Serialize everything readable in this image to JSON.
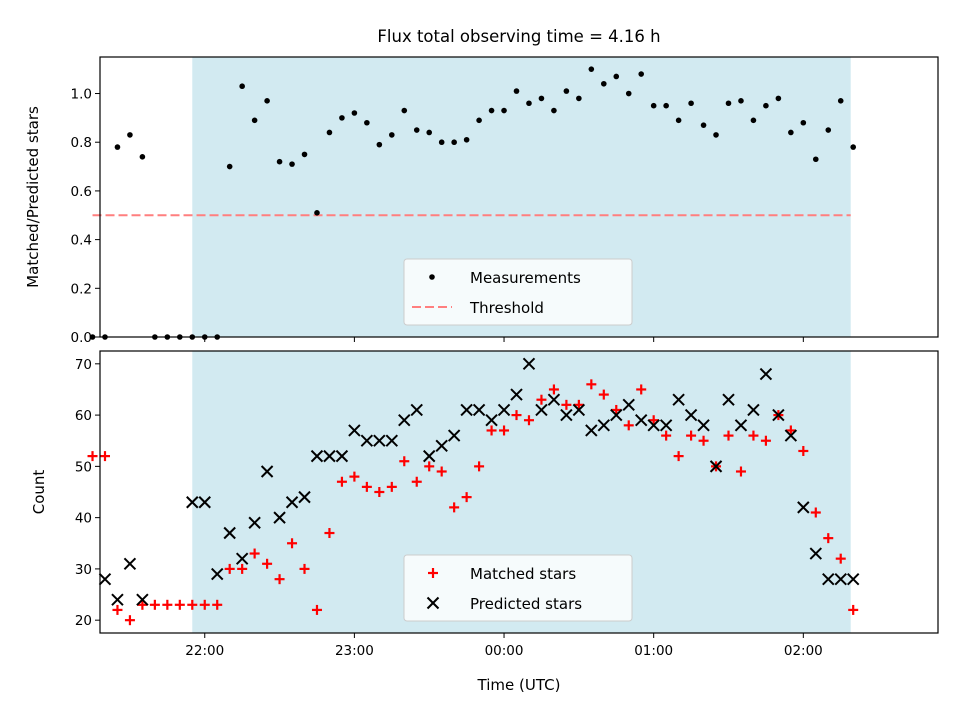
{
  "title": "Flux total observing time = 4.16 h",
  "colors": {
    "shade": "#add8e6",
    "measure": "#000000",
    "threshold": "#ff7f7f",
    "matched": "#ff0000",
    "predicted": "#000000"
  },
  "chart_data": [
    {
      "type": "scatter",
      "ylabel": "Matched/Predicted stars",
      "xlim": [
        21.3,
        2.9
      ],
      "ylim": [
        0.0,
        1.15
      ],
      "yticks": [
        0.0,
        0.2,
        0.4,
        0.6,
        0.8,
        1.0
      ],
      "grid": false,
      "legend_position": "lower-center",
      "shaded_x_range": [
        "21:55",
        "02:19"
      ],
      "threshold": {
        "name": "Threshold",
        "value": 0.5,
        "x_range": [
          "21:15",
          "02:19"
        ]
      },
      "series": [
        {
          "name": "Measurements",
          "x": [
            "21:15",
            "21:20",
            "21:25",
            "21:30",
            "21:35",
            "21:40",
            "21:45",
            "21:50",
            "21:55",
            "22:00",
            "22:05",
            "22:10",
            "22:15",
            "22:20",
            "22:25",
            "22:30",
            "22:35",
            "22:40",
            "22:45",
            "22:50",
            "22:55",
            "23:00",
            "23:05",
            "23:10",
            "23:15",
            "23:20",
            "23:25",
            "23:30",
            "23:35",
            "23:40",
            "23:45",
            "23:50",
            "23:55",
            "00:00",
            "00:05",
            "00:10",
            "00:15",
            "00:20",
            "00:25",
            "00:30",
            "00:35",
            "00:40",
            "00:45",
            "00:50",
            "00:55",
            "01:00",
            "01:05",
            "01:10",
            "01:15",
            "01:20",
            "01:25",
            "01:30",
            "01:35",
            "01:40",
            "01:45",
            "01:50",
            "01:55",
            "02:00",
            "02:05",
            "02:10",
            "02:15",
            "02:20"
          ],
          "y": [
            0.0,
            0.0,
            0.78,
            0.83,
            0.74,
            0.0,
            0.0,
            0.0,
            0.0,
            0.0,
            0.0,
            0.7,
            1.03,
            0.89,
            0.97,
            0.72,
            0.71,
            0.75,
            0.51,
            0.84,
            0.9,
            0.92,
            0.88,
            0.79,
            0.83,
            0.93,
            0.85,
            0.84,
            0.8,
            0.8,
            0.81,
            0.89,
            0.93,
            0.93,
            1.01,
            0.96,
            0.98,
            0.93,
            1.01,
            0.98,
            1.1,
            1.04,
            1.07,
            1.0,
            1.08,
            0.95,
            0.95,
            0.89,
            0.96,
            0.87,
            0.83,
            0.96,
            0.97,
            0.89,
            0.95,
            0.98,
            0.84,
            0.88,
            0.73,
            0.85,
            0.97,
            0.78
          ]
        }
      ]
    },
    {
      "type": "scatter",
      "xlabel": "Time (UTC)",
      "ylabel": "Count",
      "xlim": [
        21.3,
        2.9
      ],
      "ylim": [
        17.5,
        72.5
      ],
      "yticks": [
        20,
        30,
        40,
        50,
        60,
        70
      ],
      "xticks": [
        "22:00",
        "23:00",
        "00:00",
        "01:00",
        "02:00"
      ],
      "grid": false,
      "legend_position": "lower-center",
      "shaded_x_range": [
        "21:55",
        "02:19"
      ],
      "series": [
        {
          "name": "Matched stars",
          "marker": "plus",
          "x": [
            "21:15",
            "21:20",
            "21:25",
            "21:30",
            "21:35",
            "21:40",
            "21:45",
            "21:50",
            "21:55",
            "22:00",
            "22:05",
            "22:10",
            "22:15",
            "22:20",
            "22:25",
            "22:30",
            "22:35",
            "22:40",
            "22:45",
            "22:50",
            "22:55",
            "23:00",
            "23:05",
            "23:10",
            "23:15",
            "23:20",
            "23:25",
            "23:30",
            "23:35",
            "23:40",
            "23:45",
            "23:50",
            "23:55",
            "00:00",
            "00:05",
            "00:10",
            "00:15",
            "00:20",
            "00:25",
            "00:30",
            "00:35",
            "00:40",
            "00:45",
            "00:50",
            "00:55",
            "01:00",
            "01:05",
            "01:10",
            "01:15",
            "01:20",
            "01:25",
            "01:30",
            "01:35",
            "01:40",
            "01:45",
            "01:50",
            "01:55",
            "02:00",
            "02:05",
            "02:10",
            "02:15",
            "02:20"
          ],
          "y": [
            52,
            52,
            22,
            20,
            23,
            23,
            23,
            23,
            23,
            23,
            23,
            30,
            30,
            33,
            31,
            28,
            35,
            30,
            22,
            37,
            47,
            48,
            46,
            45,
            46,
            51,
            47,
            50,
            49,
            42,
            44,
            50,
            57,
            57,
            60,
            59,
            63,
            65,
            62,
            62,
            66,
            64,
            61,
            58,
            65,
            59,
            56,
            52,
            56,
            55,
            50,
            56,
            49,
            56,
            55,
            60,
            57,
            53,
            41,
            36,
            32,
            22
          ]
        },
        {
          "name": "Predicted stars",
          "marker": "x",
          "x": [
            "21:20",
            "21:25",
            "21:30",
            "21:35",
            "21:55",
            "22:00",
            "22:05",
            "22:10",
            "22:15",
            "22:20",
            "22:25",
            "22:30",
            "22:35",
            "22:40",
            "22:45",
            "22:50",
            "22:55",
            "23:00",
            "23:05",
            "23:10",
            "23:15",
            "23:20",
            "23:25",
            "23:30",
            "23:35",
            "23:40",
            "23:45",
            "23:50",
            "23:55",
            "00:00",
            "00:05",
            "00:10",
            "00:15",
            "00:20",
            "00:25",
            "00:30",
            "00:35",
            "00:40",
            "00:45",
            "00:50",
            "00:55",
            "01:00",
            "01:05",
            "01:10",
            "01:15",
            "01:20",
            "01:25",
            "01:30",
            "01:35",
            "01:40",
            "01:45",
            "01:50",
            "01:55",
            "02:00",
            "02:05",
            "02:10",
            "02:15",
            "02:20"
          ],
          "y": [
            28,
            24,
            31,
            24,
            43,
            43,
            29,
            37,
            32,
            39,
            49,
            40,
            43,
            44,
            52,
            52,
            52,
            57,
            55,
            55,
            55,
            59,
            61,
            52,
            54,
            56,
            61,
            61,
            59,
            61,
            64,
            70,
            61,
            63,
            60,
            61,
            57,
            58,
            60,
            62,
            59,
            58,
            58,
            63,
            60,
            58,
            50,
            63,
            58,
            61,
            68,
            60,
            56,
            42,
            33,
            28,
            28,
            28
          ]
        }
      ]
    }
  ]
}
